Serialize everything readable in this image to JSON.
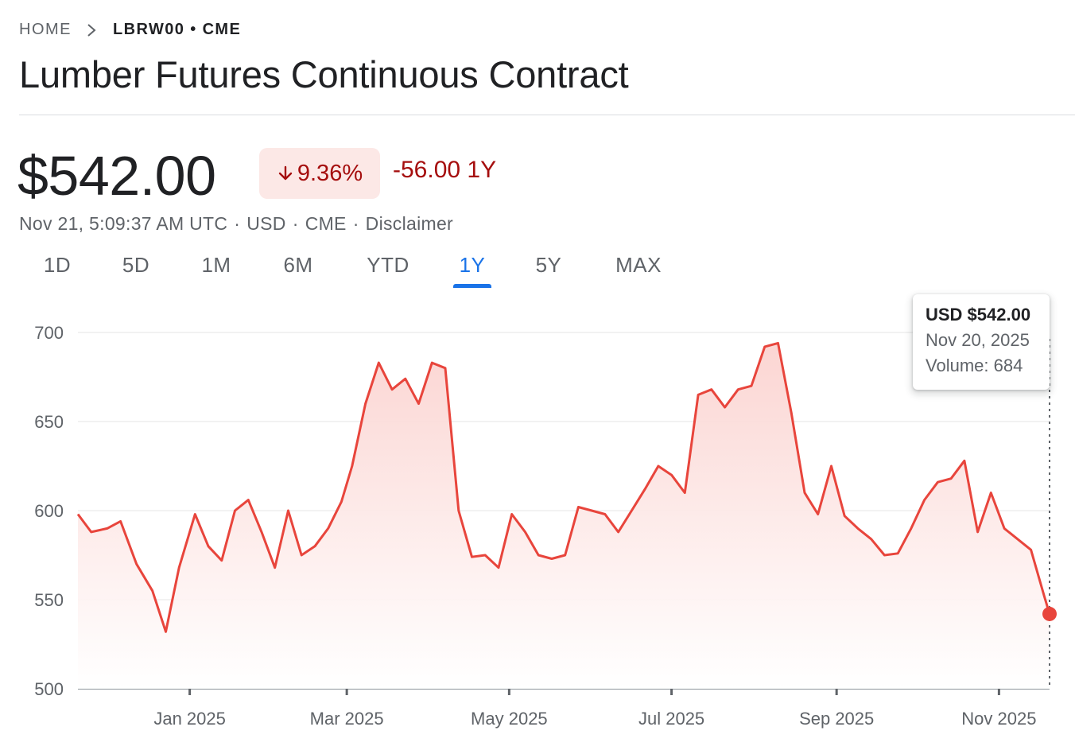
{
  "breadcrumb": {
    "home": "HOME",
    "current": "LBRW00 • CME"
  },
  "title": "Lumber Futures Continuous Contract",
  "quote": {
    "price": "$542.00",
    "change_pct": "9.36%",
    "change_abs": "-56.00 1Y",
    "timestamp": "Nov 21, 5:09:37 AM UTC",
    "currency": "USD",
    "exchange": "CME",
    "disclaimer": "Disclaimer",
    "separator": "·"
  },
  "tabs": [
    {
      "label": "1D"
    },
    {
      "label": "5D"
    },
    {
      "label": "1M"
    },
    {
      "label": "6M"
    },
    {
      "label": "YTD"
    },
    {
      "label": "1Y",
      "active": true
    },
    {
      "label": "5Y"
    },
    {
      "label": "MAX"
    }
  ],
  "tooltip": {
    "price": "USD $542.00",
    "date": "Nov 20, 2025",
    "volume": "Volume: 684"
  },
  "colors": {
    "line": "#e8453c",
    "negative": "#a50e0e",
    "accent": "#1a73e8"
  },
  "chart_data": {
    "type": "area",
    "title": "",
    "xlabel": "",
    "ylabel": "",
    "ylim": [
      500,
      700
    ],
    "yticks": [
      700,
      650,
      600,
      550,
      500
    ],
    "xticks": [
      "Jan 2025",
      "Mar 2025",
      "May 2025",
      "Jul 2025",
      "Sep 2025",
      "Nov 2025"
    ],
    "grid": true,
    "x": [
      "2024-11-20",
      "2024-11-25",
      "2024-12-01",
      "2024-12-06",
      "2024-12-12",
      "2024-12-18",
      "2024-12-23",
      "2024-12-28",
      "2025-01-03",
      "2025-01-08",
      "2025-01-13",
      "2025-01-18",
      "2025-01-23",
      "2025-01-28",
      "2025-02-02",
      "2025-02-07",
      "2025-02-12",
      "2025-02-17",
      "2025-02-22",
      "2025-02-27",
      "2025-03-03",
      "2025-03-08",
      "2025-03-13",
      "2025-03-18",
      "2025-03-23",
      "2025-03-28",
      "2025-04-02",
      "2025-04-07",
      "2025-04-12",
      "2025-04-17",
      "2025-04-22",
      "2025-04-27",
      "2025-05-02",
      "2025-05-07",
      "2025-05-12",
      "2025-05-17",
      "2025-05-22",
      "2025-05-27",
      "2025-06-01",
      "2025-06-06",
      "2025-06-11",
      "2025-06-16",
      "2025-06-21",
      "2025-06-26",
      "2025-07-01",
      "2025-07-06",
      "2025-07-11",
      "2025-07-16",
      "2025-07-21",
      "2025-07-26",
      "2025-07-31",
      "2025-08-05",
      "2025-08-10",
      "2025-08-15",
      "2025-08-20",
      "2025-08-25",
      "2025-08-30",
      "2025-09-04",
      "2025-09-09",
      "2025-09-14",
      "2025-09-19",
      "2025-09-24",
      "2025-09-29",
      "2025-10-04",
      "2025-10-09",
      "2025-10-14",
      "2025-10-19",
      "2025-10-24",
      "2025-10-29",
      "2025-11-03",
      "2025-11-08",
      "2025-11-13",
      "2025-11-18",
      "2025-11-20"
    ],
    "series": [
      {
        "values": [
          598,
          588,
          590,
          594,
          570,
          555,
          532,
          568,
          598,
          580,
          572,
          600,
          606,
          588,
          568,
          600,
          575,
          580,
          590,
          605,
          625,
          660,
          683,
          668,
          674,
          660,
          683,
          680,
          600,
          574,
          575,
          568,
          598,
          588,
          575,
          573,
          575,
          602,
          600,
          598,
          588,
          600,
          612,
          625,
          620,
          610,
          665,
          668,
          658,
          668,
          670,
          692,
          694,
          655,
          610,
          598,
          625,
          597,
          590,
          584,
          575,
          576,
          590,
          606,
          616,
          618,
          628,
          588,
          610,
          590,
          584,
          578,
          552,
          542
        ]
      }
    ]
  }
}
